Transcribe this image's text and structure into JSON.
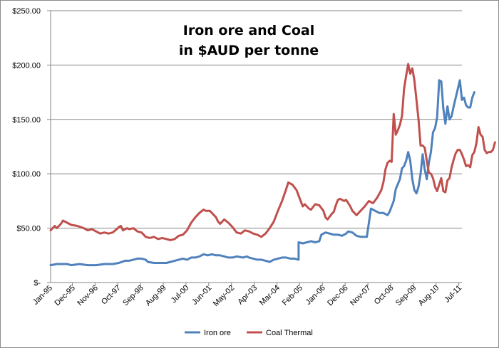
{
  "chart_data": {
    "type": "line",
    "title_lines": [
      "Iron ore and Coal",
      "in $AUD per tonne"
    ],
    "xlabel": "",
    "ylabel": "",
    "ylim": [
      0,
      250
    ],
    "y_ticks": [
      {
        "value": 0,
        "label": "$-"
      },
      {
        "value": 50,
        "label": "$50.00"
      },
      {
        "value": 100,
        "label": "$100.00"
      },
      {
        "value": 150,
        "label": "$150.00"
      },
      {
        "value": 200,
        "label": "$200.00"
      },
      {
        "value": 250,
        "label": "$250.00"
      }
    ],
    "x_range_months": [
      0,
      199
    ],
    "x_ticks": [
      {
        "month": 0,
        "label": "Jan-95"
      },
      {
        "month": 11,
        "label": "Dec-95"
      },
      {
        "month": 22,
        "label": "Nov-96"
      },
      {
        "month": 33,
        "label": "Oct-97"
      },
      {
        "month": 44,
        "label": "Sep-98"
      },
      {
        "month": 55,
        "label": "Aug-99"
      },
      {
        "month": 66,
        "label": "Jul-00"
      },
      {
        "month": 77,
        "label": "Jun-01"
      },
      {
        "month": 88,
        "label": "May-02"
      },
      {
        "month": 99,
        "label": "Apr-03"
      },
      {
        "month": 110,
        "label": "Mar-04"
      },
      {
        "month": 121,
        "label": "Feb-05"
      },
      {
        "month": 132,
        "label": "Jan-06"
      },
      {
        "month": 143,
        "label": "Dec-06"
      },
      {
        "month": 154,
        "label": "Nov-07"
      },
      {
        "month": 165,
        "label": "Oct-08"
      },
      {
        "month": 176,
        "label": "Sep-09"
      },
      {
        "month": 187,
        "label": "Aug-10"
      },
      {
        "month": 198,
        "label": "Jul-11"
      }
    ],
    "gridlines": "horizontal",
    "legend_position": "bottom",
    "series": [
      {
        "name": "Iron ore",
        "color": "#4f81bd",
        "points": [
          [
            0,
            16
          ],
          [
            3,
            17
          ],
          [
            8,
            17
          ],
          [
            10,
            16
          ],
          [
            14,
            17
          ],
          [
            18,
            16
          ],
          [
            22,
            16
          ],
          [
            26,
            17
          ],
          [
            30,
            17
          ],
          [
            33,
            18
          ],
          [
            36,
            20
          ],
          [
            38,
            20
          ],
          [
            40,
            21
          ],
          [
            42,
            22
          ],
          [
            44,
            22
          ],
          [
            46,
            21
          ],
          [
            47,
            19
          ],
          [
            50,
            18
          ],
          [
            53,
            18
          ],
          [
            56,
            18
          ],
          [
            58,
            19
          ],
          [
            60,
            20
          ],
          [
            62,
            21
          ],
          [
            64,
            22
          ],
          [
            66,
            21
          ],
          [
            68,
            23
          ],
          [
            70,
            23
          ],
          [
            72,
            24
          ],
          [
            74,
            26
          ],
          [
            76,
            25
          ],
          [
            78,
            26
          ],
          [
            80,
            25
          ],
          [
            82,
            25
          ],
          [
            84,
            24
          ],
          [
            86,
            23
          ],
          [
            88,
            23
          ],
          [
            90,
            24
          ],
          [
            93,
            23
          ],
          [
            95,
            24
          ],
          [
            96,
            23
          ],
          [
            98,
            22
          ],
          [
            100,
            21
          ],
          [
            102,
            21
          ],
          [
            104,
            20
          ],
          [
            106,
            19
          ],
          [
            107,
            20
          ],
          [
            108,
            21
          ],
          [
            110,
            22
          ],
          [
            112,
            23
          ],
          [
            114,
            23
          ],
          [
            116,
            22
          ],
          [
            118,
            22
          ],
          [
            120,
            21
          ],
          [
            120,
            37
          ],
          [
            122,
            36
          ],
          [
            124,
            37
          ],
          [
            126,
            38
          ],
          [
            128,
            37
          ],
          [
            130,
            38
          ],
          [
            131,
            44
          ],
          [
            133,
            46
          ],
          [
            135,
            45
          ],
          [
            137,
            44
          ],
          [
            139,
            44
          ],
          [
            141,
            43
          ],
          [
            143,
            45
          ],
          [
            144,
            47
          ],
          [
            146,
            46
          ],
          [
            148,
            43
          ],
          [
            150,
            42
          ],
          [
            152,
            42
          ],
          [
            153,
            42
          ],
          [
            155,
            68
          ],
          [
            157,
            66
          ],
          [
            159,
            64
          ],
          [
            161,
            64
          ],
          [
            163,
            62
          ],
          [
            164,
            65
          ],
          [
            166,
            75
          ],
          [
            167,
            86
          ],
          [
            169,
            95
          ],
          [
            170,
            105
          ],
          [
            171,
            107
          ],
          [
            172,
            112
          ],
          [
            173,
            120
          ],
          [
            174,
            112
          ],
          [
            175,
            95
          ],
          [
            176,
            85
          ],
          [
            177,
            82
          ],
          [
            178,
            88
          ],
          [
            179,
            100
          ],
          [
            180,
            118
          ],
          [
            181,
            104
          ],
          [
            182,
            95
          ],
          [
            183,
            110
          ],
          [
            184,
            120
          ],
          [
            185,
            138
          ],
          [
            186,
            142
          ],
          [
            187,
            152
          ],
          [
            188,
            186
          ],
          [
            189,
            185
          ],
          [
            190,
            160
          ],
          [
            191,
            146
          ],
          [
            192,
            162
          ],
          [
            193,
            150
          ],
          [
            194,
            153
          ],
          [
            195,
            162
          ],
          [
            196,
            170
          ],
          [
            197,
            178
          ],
          [
            198,
            186
          ],
          [
            199,
            168
          ],
          [
            200,
            170
          ],
          [
            201,
            163
          ],
          [
            202,
            161
          ],
          [
            203,
            161
          ],
          [
            204,
            170
          ],
          [
            205,
            175
          ]
        ]
      },
      {
        "name": "Coal Thermal",
        "color": "#c0504d",
        "points": [
          [
            0,
            48
          ],
          [
            2,
            52
          ],
          [
            3,
            50
          ],
          [
            5,
            54
          ],
          [
            6,
            57
          ],
          [
            8,
            55
          ],
          [
            10,
            53
          ],
          [
            13,
            52
          ],
          [
            16,
            50
          ],
          [
            18,
            48
          ],
          [
            20,
            49
          ],
          [
            22,
            47
          ],
          [
            24,
            45
          ],
          [
            26,
            46
          ],
          [
            28,
            45
          ],
          [
            30,
            46
          ],
          [
            32,
            49
          ],
          [
            33,
            51
          ],
          [
            34,
            52
          ],
          [
            35,
            48
          ],
          [
            37,
            50
          ],
          [
            38,
            49
          ],
          [
            40,
            50
          ],
          [
            42,
            47
          ],
          [
            44,
            46
          ],
          [
            46,
            42
          ],
          [
            48,
            41
          ],
          [
            50,
            42
          ],
          [
            52,
            40
          ],
          [
            54,
            41
          ],
          [
            56,
            40
          ],
          [
            58,
            39
          ],
          [
            60,
            40
          ],
          [
            62,
            43
          ],
          [
            64,
            44
          ],
          [
            66,
            48
          ],
          [
            68,
            55
          ],
          [
            70,
            60
          ],
          [
            72,
            64
          ],
          [
            74,
            67
          ],
          [
            75,
            66
          ],
          [
            77,
            66
          ],
          [
            78,
            64
          ],
          [
            80,
            60
          ],
          [
            81,
            56
          ],
          [
            82,
            54
          ],
          [
            84,
            58
          ],
          [
            86,
            55
          ],
          [
            88,
            51
          ],
          [
            90,
            46
          ],
          [
            92,
            45
          ],
          [
            94,
            48
          ],
          [
            96,
            47
          ],
          [
            98,
            45
          ],
          [
            100,
            44
          ],
          [
            102,
            42
          ],
          [
            104,
            45
          ],
          [
            106,
            50
          ],
          [
            108,
            56
          ],
          [
            110,
            66
          ],
          [
            112,
            75
          ],
          [
            114,
            86
          ],
          [
            115,
            92
          ],
          [
            117,
            90
          ],
          [
            119,
            85
          ],
          [
            120,
            80
          ],
          [
            122,
            70
          ],
          [
            123,
            72
          ],
          [
            125,
            68
          ],
          [
            126,
            67
          ],
          [
            128,
            72
          ],
          [
            130,
            71
          ],
          [
            132,
            66
          ],
          [
            133,
            60
          ],
          [
            134,
            58
          ],
          [
            136,
            63
          ],
          [
            137,
            65
          ],
          [
            138,
            71
          ],
          [
            139,
            76
          ],
          [
            140,
            77
          ],
          [
            142,
            75
          ],
          [
            143,
            76
          ],
          [
            145,
            70
          ],
          [
            146,
            66
          ],
          [
            148,
            62
          ],
          [
            150,
            66
          ],
          [
            152,
            70
          ],
          [
            154,
            75
          ],
          [
            156,
            73
          ],
          [
            158,
            78
          ],
          [
            160,
            85
          ],
          [
            161,
            92
          ],
          [
            162,
            104
          ],
          [
            163,
            110
          ],
          [
            164,
            112
          ],
          [
            165,
            111
          ],
          [
            166,
            155
          ],
          [
            167,
            136
          ],
          [
            168,
            140
          ],
          [
            169,
            145
          ],
          [
            170,
            153
          ],
          [
            171,
            178
          ],
          [
            172,
            190
          ],
          [
            173,
            201
          ],
          [
            174,
            192
          ],
          [
            175,
            197
          ],
          [
            176,
            186
          ],
          [
            177,
            168
          ],
          [
            178,
            150
          ],
          [
            179,
            126
          ],
          [
            180,
            126
          ],
          [
            181,
            124
          ],
          [
            182,
            112
          ],
          [
            183,
            101
          ],
          [
            184,
            100
          ],
          [
            185,
            96
          ],
          [
            186,
            88
          ],
          [
            187,
            84
          ],
          [
            188,
            90
          ],
          [
            189,
            96
          ],
          [
            190,
            84
          ],
          [
            191,
            83
          ],
          [
            192,
            94
          ],
          [
            193,
            96
          ],
          [
            194,
            106
          ],
          [
            195,
            113
          ],
          [
            196,
            119
          ],
          [
            197,
            122
          ],
          [
            198,
            122
          ],
          [
            199,
            118
          ],
          [
            200,
            113
          ],
          [
            201,
            107
          ],
          [
            202,
            108
          ],
          [
            203,
            106
          ],
          [
            204,
            117
          ],
          [
            205,
            120
          ],
          [
            206,
            128
          ],
          [
            207,
            143
          ],
          [
            208,
            136
          ],
          [
            209,
            134
          ],
          [
            210,
            122
          ],
          [
            211,
            119
          ],
          [
            212,
            120
          ],
          [
            213,
            120
          ],
          [
            214,
            122
          ],
          [
            215,
            129
          ]
        ]
      }
    ]
  }
}
